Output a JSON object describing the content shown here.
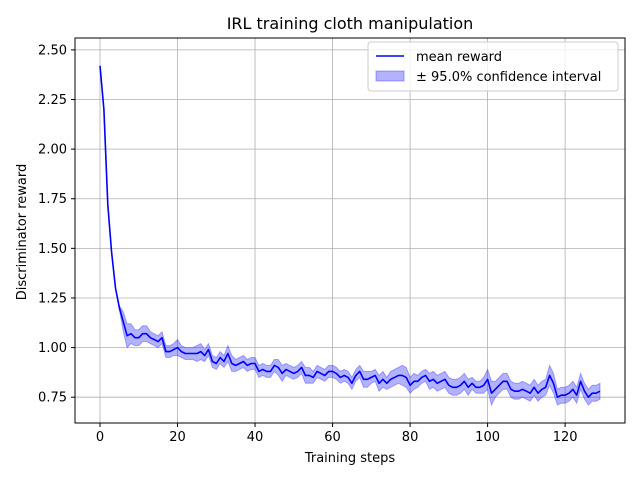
{
  "chart_data": {
    "type": "line",
    "title": "IRL training cloth manipulation",
    "xlabel": "Training steps",
    "ylabel": "Discriminator reward",
    "xlim": [
      -6.45,
      135.45
    ],
    "ylim": [
      0.62,
      2.56
    ],
    "x_ticks": [
      0,
      20,
      40,
      60,
      80,
      100,
      120
    ],
    "y_ticks": [
      0.75,
      1.0,
      1.25,
      1.5,
      1.75,
      2.0,
      2.25,
      2.5
    ],
    "x_tick_labels": [
      "0",
      "20",
      "40",
      "60",
      "80",
      "100",
      "120"
    ],
    "y_tick_labels": [
      "0.75",
      "1.00",
      "1.25",
      "1.50",
      "1.75",
      "2.00",
      "2.25",
      "2.50"
    ],
    "grid": true,
    "legend_position": "top-right",
    "colors": {
      "line": "#0000ff",
      "band": "#0000ff",
      "grid": "#b0b0b0"
    },
    "series": [
      {
        "name": "mean reward",
        "x": [
          0,
          1,
          2,
          3,
          4,
          5,
          6,
          7,
          8,
          9,
          10,
          11,
          12,
          13,
          14,
          15,
          16,
          17,
          18,
          19,
          20,
          21,
          22,
          23,
          24,
          25,
          26,
          27,
          28,
          29,
          30,
          31,
          32,
          33,
          34,
          35,
          36,
          37,
          38,
          39,
          40,
          41,
          42,
          43,
          44,
          45,
          46,
          47,
          48,
          49,
          50,
          51,
          52,
          53,
          54,
          55,
          56,
          57,
          58,
          59,
          60,
          61,
          62,
          63,
          64,
          65,
          66,
          67,
          68,
          69,
          70,
          71,
          72,
          73,
          74,
          75,
          76,
          77,
          78,
          79,
          80,
          81,
          82,
          83,
          84,
          85,
          86,
          87,
          88,
          89,
          90,
          91,
          92,
          93,
          94,
          95,
          96,
          97,
          98,
          99,
          100,
          101,
          102,
          103,
          104,
          105,
          106,
          107,
          108,
          109,
          110,
          111,
          112,
          113,
          114,
          115,
          116,
          117,
          118,
          119,
          120,
          121,
          122,
          123,
          124,
          125,
          126,
          127,
          128,
          129
        ],
        "values": [
          2.42,
          2.2,
          1.72,
          1.48,
          1.3,
          1.2,
          1.13,
          1.06,
          1.07,
          1.05,
          1.05,
          1.07,
          1.07,
          1.05,
          1.04,
          1.03,
          1.05,
          0.98,
          0.98,
          0.99,
          1.0,
          0.98,
          0.97,
          0.97,
          0.97,
          0.97,
          0.98,
          0.96,
          0.99,
          0.93,
          0.92,
          0.95,
          0.93,
          0.97,
          0.92,
          0.91,
          0.92,
          0.93,
          0.91,
          0.92,
          0.92,
          0.88,
          0.89,
          0.88,
          0.88,
          0.91,
          0.9,
          0.87,
          0.89,
          0.88,
          0.87,
          0.88,
          0.9,
          0.86,
          0.86,
          0.85,
          0.88,
          0.87,
          0.86,
          0.88,
          0.88,
          0.87,
          0.85,
          0.86,
          0.85,
          0.82,
          0.86,
          0.88,
          0.84,
          0.84,
          0.85,
          0.86,
          0.82,
          0.84,
          0.82,
          0.84,
          0.85,
          0.86,
          0.86,
          0.85,
          0.81,
          0.83,
          0.83,
          0.85,
          0.86,
          0.83,
          0.84,
          0.82,
          0.83,
          0.84,
          0.81,
          0.8,
          0.8,
          0.81,
          0.83,
          0.8,
          0.82,
          0.8,
          0.8,
          0.81,
          0.84,
          0.77,
          0.79,
          0.81,
          0.83,
          0.83,
          0.79,
          0.78,
          0.78,
          0.79,
          0.78,
          0.77,
          0.8,
          0.77,
          0.79,
          0.8,
          0.86,
          0.82,
          0.75,
          0.76,
          0.76,
          0.77,
          0.79,
          0.76,
          0.83,
          0.78,
          0.75,
          0.77,
          0.77,
          0.78
        ],
        "ci_half_width": [
          0.0,
          0.0,
          0.0,
          0.0,
          0.0,
          0.01,
          0.05,
          0.06,
          0.05,
          0.04,
          0.04,
          0.04,
          0.04,
          0.03,
          0.03,
          0.03,
          0.03,
          0.03,
          0.03,
          0.03,
          0.04,
          0.03,
          0.03,
          0.03,
          0.03,
          0.04,
          0.04,
          0.03,
          0.03,
          0.03,
          0.03,
          0.03,
          0.03,
          0.04,
          0.04,
          0.03,
          0.03,
          0.03,
          0.03,
          0.03,
          0.03,
          0.03,
          0.03,
          0.03,
          0.03,
          0.03,
          0.04,
          0.04,
          0.03,
          0.03,
          0.03,
          0.03,
          0.03,
          0.04,
          0.04,
          0.03,
          0.03,
          0.03,
          0.03,
          0.03,
          0.03,
          0.03,
          0.03,
          0.03,
          0.03,
          0.03,
          0.03,
          0.03,
          0.04,
          0.04,
          0.03,
          0.03,
          0.04,
          0.04,
          0.03,
          0.04,
          0.04,
          0.04,
          0.05,
          0.05,
          0.04,
          0.04,
          0.03,
          0.03,
          0.03,
          0.04,
          0.04,
          0.04,
          0.04,
          0.04,
          0.04,
          0.04,
          0.04,
          0.04,
          0.04,
          0.04,
          0.03,
          0.03,
          0.03,
          0.04,
          0.05,
          0.06,
          0.04,
          0.04,
          0.04,
          0.04,
          0.04,
          0.04,
          0.04,
          0.04,
          0.04,
          0.04,
          0.04,
          0.04,
          0.04,
          0.04,
          0.05,
          0.05,
          0.04,
          0.04,
          0.04,
          0.04,
          0.04,
          0.04,
          0.04,
          0.04,
          0.04,
          0.04,
          0.04,
          0.04
        ]
      }
    ],
    "band_label": "± 95.0% confidence interval"
  }
}
